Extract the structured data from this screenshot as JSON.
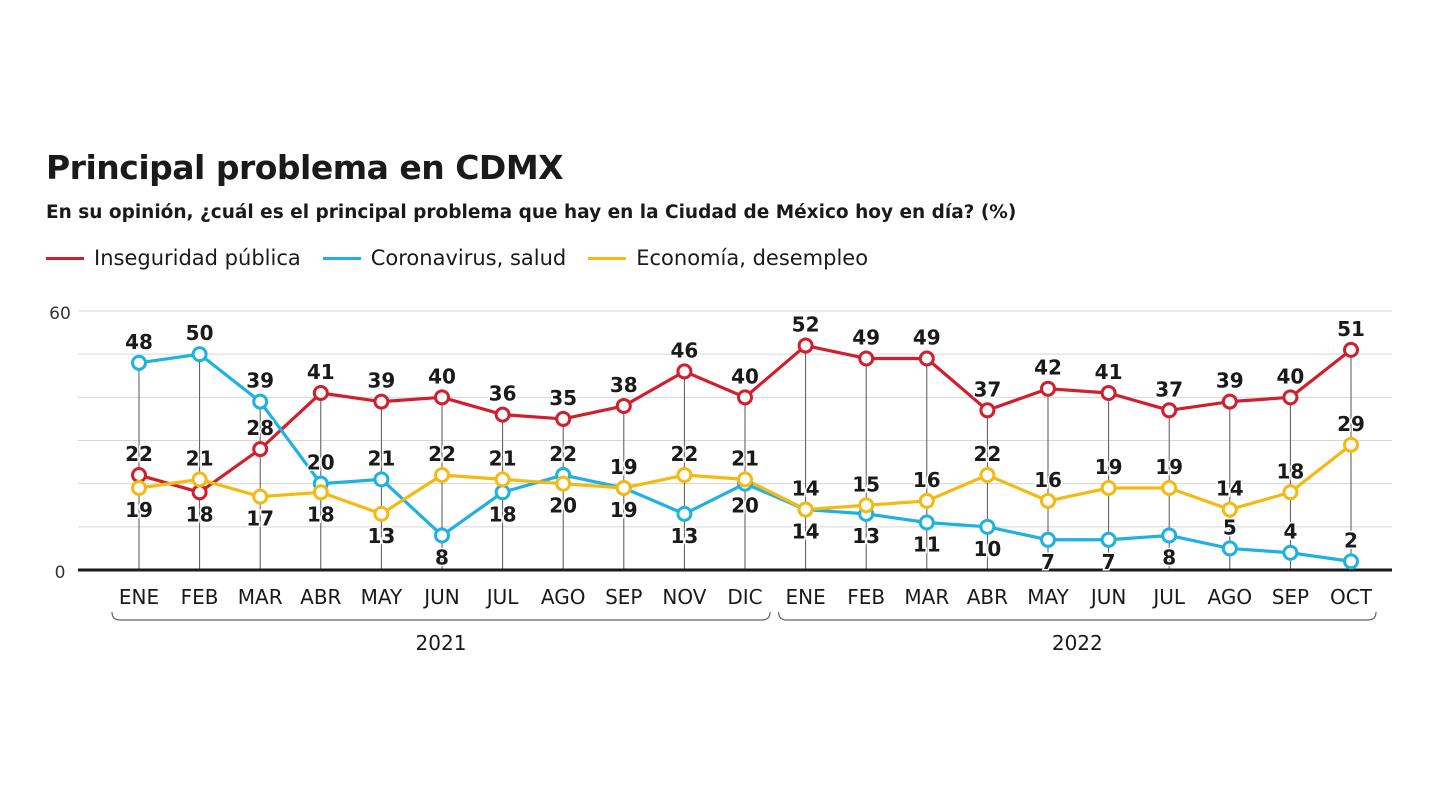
{
  "title": "Principal problema en CDMX",
  "subtitle": "En su opinión, ¿cuál es el principal problema que hay en la Ciudad de México hoy en día?  (%)",
  "colors": {
    "red": "#d0202d",
    "blue": "#1fb1e0",
    "yellow": "#f5b913"
  },
  "chart_data": {
    "type": "line",
    "title": "Principal problema en CDMX",
    "subtitle": "En su opinión, ¿cuál es el principal problema que hay en la Ciudad de México hoy en día?  (%)",
    "categories": [
      "ENE",
      "FEB",
      "MAR",
      "ABR",
      "MAY",
      "JUN",
      "JUL",
      "AGO",
      "SEP",
      "NOV",
      "DIC",
      "ENE",
      "FEB",
      "MAR",
      "ABR",
      "MAY",
      "JUN",
      "JUL",
      "AGO",
      "SEP",
      "OCT"
    ],
    "year_groups": [
      {
        "label": "2021",
        "from": 0,
        "to": 10
      },
      {
        "label": "2022",
        "from": 11,
        "to": 20
      }
    ],
    "ylim": [
      0,
      60
    ],
    "y_tick_labels": [
      "0",
      "60"
    ],
    "grid": true,
    "legend_position": "top-left",
    "series": [
      {
        "name": "Inseguridad pública",
        "color": "#d0202d",
        "values": [
          22,
          18,
          28,
          41,
          39,
          40,
          36,
          35,
          38,
          46,
          40,
          52,
          49,
          49,
          37,
          42,
          41,
          37,
          39,
          40,
          51
        ],
        "label_pos": [
          "a",
          "b",
          "a",
          "a",
          "a",
          "a",
          "a",
          "a",
          "a",
          "a",
          "a",
          "a",
          "a",
          "a",
          "a",
          "a",
          "a",
          "a",
          "a",
          "a",
          "a"
        ]
      },
      {
        "name": "Coronavirus, salud",
        "color": "#1fb1e0",
        "values": [
          48,
          50,
          39,
          20,
          21,
          8,
          18,
          22,
          19,
          13,
          20,
          14,
          13,
          11,
          10,
          7,
          7,
          8,
          5,
          4,
          2
        ],
        "label_pos": [
          "a",
          "a",
          "a",
          "a",
          "a",
          "b",
          "b",
          "a",
          "a",
          "b",
          "b",
          "b",
          "b",
          "b",
          "b",
          "b",
          "b",
          "b",
          "a",
          "a",
          "a"
        ]
      },
      {
        "name": "Economía, desempleo",
        "color": "#f5b913",
        "values": [
          19,
          21,
          17,
          18,
          13,
          22,
          21,
          20,
          19,
          22,
          21,
          14,
          15,
          16,
          22,
          16,
          19,
          19,
          14,
          18,
          29
        ],
        "label_pos": [
          "b",
          "a",
          "b",
          "b",
          "b",
          "a",
          "a",
          "b",
          "b",
          "a",
          "a",
          "a",
          "a",
          "a",
          "a",
          "a",
          "a",
          "a",
          "a",
          "a",
          "a"
        ]
      }
    ]
  }
}
